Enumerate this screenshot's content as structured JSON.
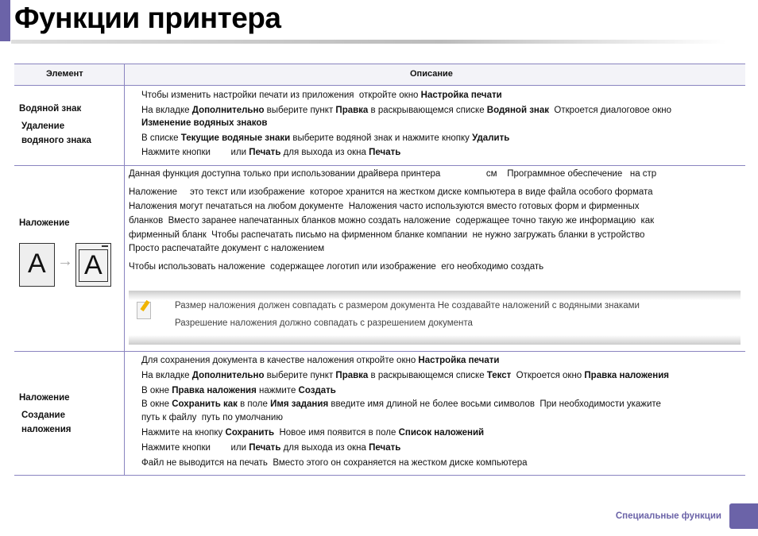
{
  "title": "Функции принтера",
  "colors": {
    "accent": "#6b63a8",
    "rule": "#8a84c0"
  },
  "table": {
    "headers": {
      "element": "Элемент",
      "description": "Описание"
    },
    "rows": [
      {
        "element": [
          "Водяной знак",
          "Удаление",
          "водяного знака"
        ],
        "lines": [
          [
            {
              "t": "Чтобы изменить настройки печати из приложения  откройте окно "
            },
            {
              "t": "Настройка печати",
              "b": 1
            }
          ],
          [
            {
              "t": "На вкладке "
            },
            {
              "t": "Дополнительно",
              "b": 1
            },
            {
              "t": " выберите пункт "
            },
            {
              "t": "Правка",
              "b": 1
            },
            {
              "t": " в раскрывающемся списке "
            },
            {
              "t": "Водяной знак",
              "b": 1
            },
            {
              "t": "  Откроется диалоговое окно"
            }
          ],
          [
            {
              "t": "Изменение водяных знаков",
              "b": 1
            }
          ],
          [
            {
              "t": "В списке "
            },
            {
              "t": "Текущие водяные знаки",
              "b": 1
            },
            {
              "t": " выберите водяной знак и нажмите кнопку "
            },
            {
              "t": "Удалить",
              "b": 1
            }
          ],
          [
            {
              "t": "Нажмите кнопки        или "
            },
            {
              "t": "Печать",
              "b": 1
            },
            {
              "t": " для выхода из окна "
            },
            {
              "t": "Печать",
              "b": 1
            }
          ]
        ]
      },
      {
        "element": [
          "Наложение"
        ],
        "illustration_letter": "A",
        "lines": [
          [
            {
              "t": "Данная функция доступна только при использовании драйвера принтера                  см    Программное обеспечение   на стр"
            }
          ],
          [
            {
              "t": "Наложение     это текст или изображение  которое хранится на жестком диске компьютера в виде файла особого формата"
            }
          ],
          [
            {
              "t": "Наложения могут печататься на любом документе  Наложения часто используются вместо готовых форм и фирменных"
            }
          ],
          [
            {
              "t": "бланков  Вместо заранее напечатанных бланков можно создать наложение  содержащее точно такую же информацию  как"
            }
          ],
          [
            {
              "t": "фирменный бланк  Чтобы распечатать письмо на фирменном бланке компании  не нужно загружать бланки в устройство"
            }
          ],
          [
            {
              "t": "Просто распечатайте документ с наложением"
            }
          ],
          [
            {
              "t": "Чтобы использовать наложение  содержащее логотип или изображение  его необходимо создать"
            }
          ]
        ],
        "notes": [
          "Размер наложения должен совпадать с размером документа  Не создавайте наложений с водяными знаками",
          "Разрешение наложения должно совпадать с разрешением документа"
        ]
      },
      {
        "element": [
          "Наложение",
          "Создание",
          "наложения"
        ],
        "lines": [
          [
            {
              "t": "Для сохранения документа в качестве наложения откройте окно "
            },
            {
              "t": "Настройка печати",
              "b": 1
            }
          ],
          [
            {
              "t": "На вкладке "
            },
            {
              "t": "Дополнительно",
              "b": 1
            },
            {
              "t": " выберите пункт "
            },
            {
              "t": "Правка",
              "b": 1
            },
            {
              "t": " в раскрывающемся списке "
            },
            {
              "t": "Текст",
              "b": 1
            },
            {
              "t": "  Откроется окно "
            },
            {
              "t": "Правка наложения",
              "b": 1
            }
          ],
          [
            {
              "t": "В окне "
            },
            {
              "t": "Правка наложения",
              "b": 1
            },
            {
              "t": " нажмите "
            },
            {
              "t": "Создать",
              "b": 1
            }
          ],
          [
            {
              "t": "В окне "
            },
            {
              "t": "Сохранить как",
              "b": 1
            },
            {
              "t": " в поле "
            },
            {
              "t": "Имя задания",
              "b": 1
            },
            {
              "t": " введите имя длиной не более восьми символов  При необходимости укажите"
            }
          ],
          [
            {
              "t": "путь к файлу  путь по умолчанию"
            }
          ],
          [
            {
              "t": "Нажмите на кнопку "
            },
            {
              "t": "Сохранить",
              "b": 1
            },
            {
              "t": "  Новое имя появится в поле "
            },
            {
              "t": "Список наложений",
              "b": 1
            }
          ],
          [
            {
              "t": "Нажмите кнопки        или "
            },
            {
              "t": "Печать",
              "b": 1
            },
            {
              "t": " для выхода из окна "
            },
            {
              "t": "Печать",
              "b": 1
            }
          ],
          [
            {
              "t": "Файл не выводится на печать  Вместо этого он сохраняется на жестком диске компьютера"
            }
          ]
        ]
      }
    ]
  },
  "footer": {
    "section": "Специальные функции"
  }
}
